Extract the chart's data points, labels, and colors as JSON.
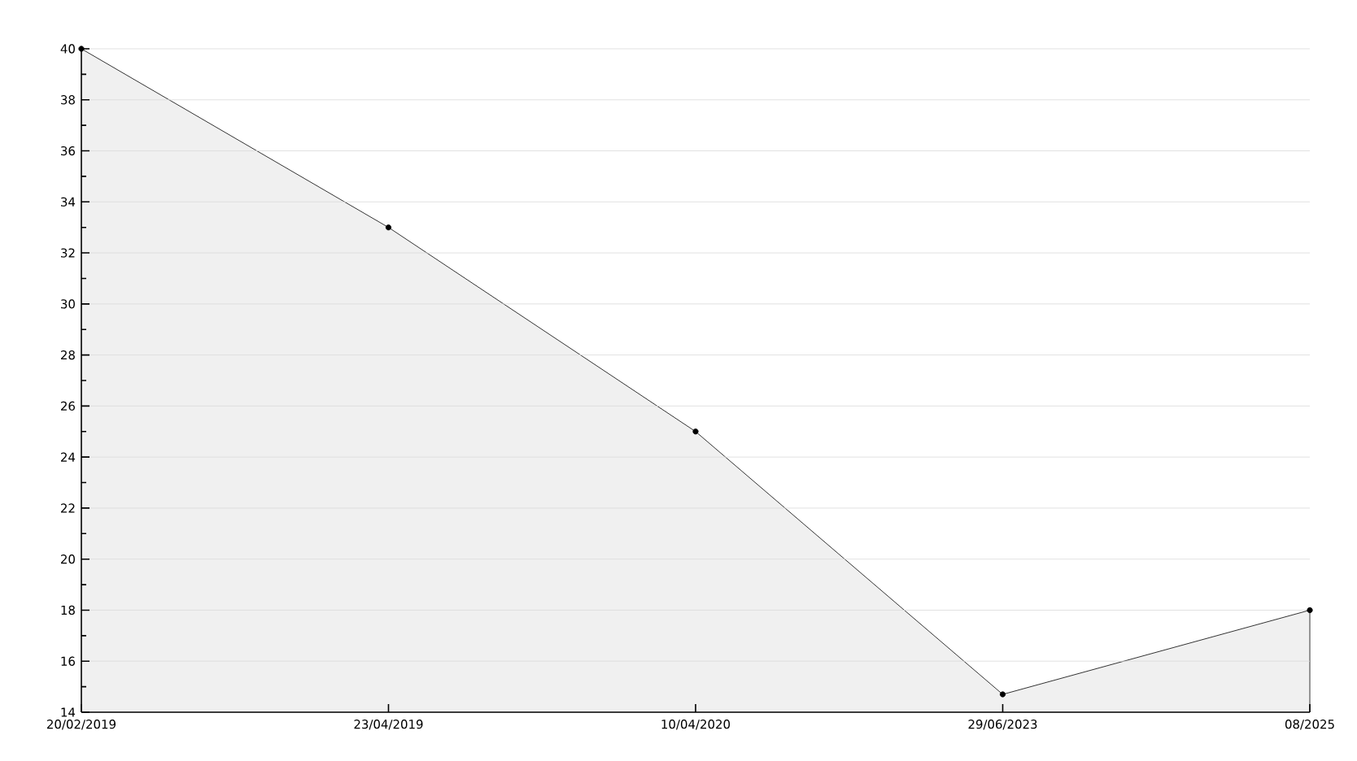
{
  "chart_data": {
    "type": "area",
    "categories": [
      "20/02/2019",
      "23/04/2019",
      "10/04/2020",
      "29/06/2023",
      "08/2025"
    ],
    "series": [
      {
        "color": "#000000",
        "values": [
          40,
          33,
          25,
          14.7,
          18
        ]
      }
    ],
    "ylim": [
      14,
      40
    ],
    "yticks": [
      14,
      16,
      18,
      20,
      22,
      24,
      26,
      28,
      30,
      32,
      34,
      36,
      38,
      40
    ],
    "grid": "y",
    "marker": "circle",
    "line_style": "solid"
  }
}
